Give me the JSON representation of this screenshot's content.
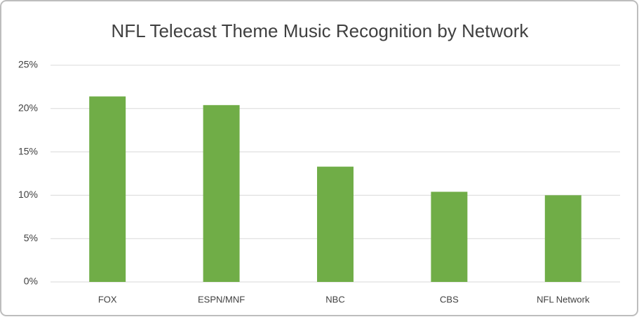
{
  "chart_data": {
    "type": "bar",
    "title": "NFL  Telecast Theme Music Recognition by Network",
    "categories": [
      "FOX",
      "ESPN/MNF",
      "NBC",
      "CBS",
      "NFL Network"
    ],
    "values": [
      21.4,
      20.4,
      13.3,
      10.4,
      10.0
    ],
    "color": "#70ad47",
    "ylim": [
      0,
      25
    ],
    "yticks": [
      {
        "value": 0,
        "label": "0%"
      },
      {
        "value": 5,
        "label": "5%"
      },
      {
        "value": 10,
        "label": "10%"
      },
      {
        "value": 15,
        "label": "15%"
      },
      {
        "value": 20,
        "label": "20%"
      },
      {
        "value": 25,
        "label": "25%"
      }
    ],
    "grid": true
  }
}
